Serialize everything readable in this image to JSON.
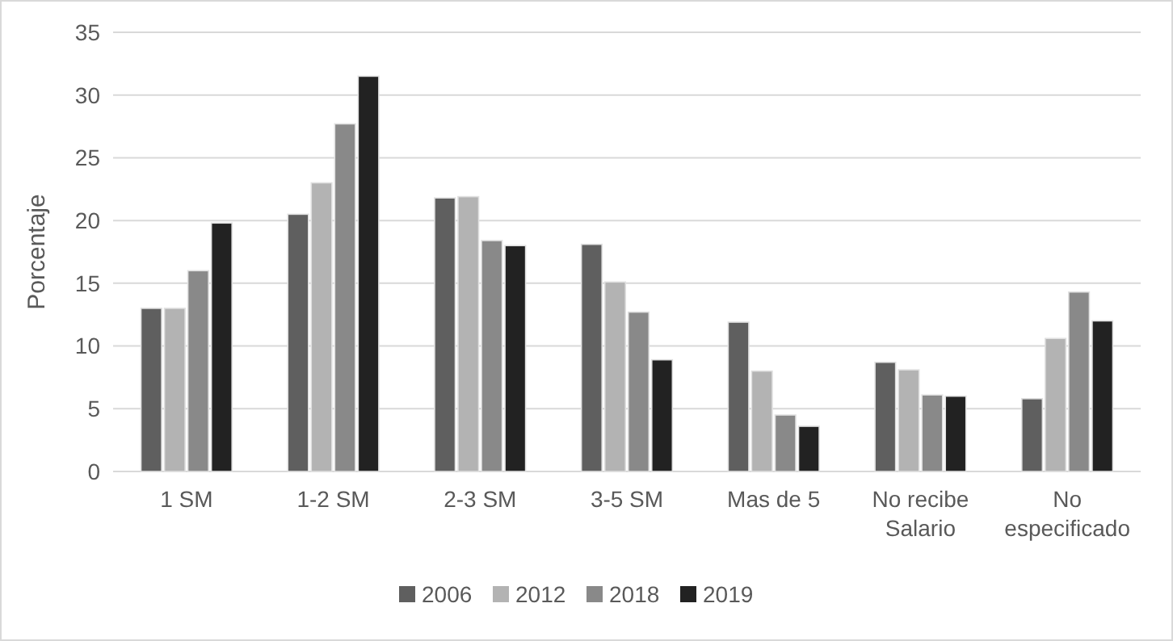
{
  "chart_data": {
    "type": "bar",
    "ylabel": "Porcentaje",
    "categories": [
      "1 SM",
      "1-2 SM",
      "2-3 SM",
      "3-5 SM",
      "Mas de 5",
      "No recibe Salario",
      "No especificado"
    ],
    "series": [
      {
        "name": "2006",
        "color": "#5f5f5f",
        "values": [
          13,
          20.5,
          21.8,
          18.1,
          11.9,
          8.7,
          5.8
        ]
      },
      {
        "name": "2012",
        "color": "#b3b3b3",
        "values": [
          13,
          23,
          21.9,
          15.1,
          8,
          8.1,
          10.6
        ]
      },
      {
        "name": "2018",
        "color": "#898989",
        "values": [
          16,
          27.7,
          18.4,
          12.7,
          4.5,
          6.1,
          14.3
        ]
      },
      {
        "name": "2019",
        "color": "#222222",
        "values": [
          19.8,
          31.5,
          18,
          8.9,
          3.6,
          6,
          12
        ]
      }
    ],
    "ylim": [
      0,
      35
    ],
    "yticks": [
      0,
      5,
      10,
      15,
      20,
      25,
      30,
      35
    ],
    "grid": "y",
    "legend": "bottom"
  }
}
